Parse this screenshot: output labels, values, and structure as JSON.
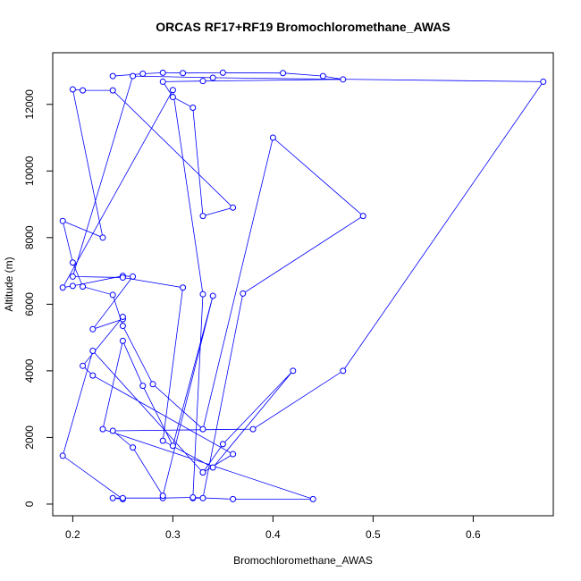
{
  "chart_data": {
    "type": "line",
    "title": "ORCAS RF17+RF19 Bromochloromethane_AWAS",
    "xlabel": "Bromochloromethane_AWAS",
    "ylabel": "Altitude (m)",
    "xlim": [
      0.18,
      0.68
    ],
    "ylim": [
      -350,
      13550
    ],
    "xticks": [
      0.2,
      0.3,
      0.4,
      0.5,
      0.6
    ],
    "xtick_labels": [
      "0.2",
      "0.3",
      "0.4",
      "0.5",
      "0.6"
    ],
    "yticks": [
      0,
      2000,
      4000,
      6000,
      8000,
      10000,
      12000
    ],
    "ytick_labels": [
      "0",
      "2000",
      "4000",
      "6000",
      "8000",
      "10000",
      "12000"
    ],
    "grid": false,
    "colors": {
      "series": "#0000ff",
      "axis": "#000000"
    },
    "series": [
      {
        "x": [
          0.24,
          0.27,
          0.29,
          0.31,
          0.35,
          0.41,
          0.45,
          0.47,
          0.33,
          0.29,
          0.3,
          0.32,
          0.33,
          0.36,
          0.24,
          0.21,
          0.2,
          0.23,
          0.19,
          0.2,
          0.21,
          0.24,
          0.25,
          0.28,
          0.33,
          0.4,
          0.49,
          0.37,
          0.33,
          0.32,
          0.33,
          0.3,
          0.19,
          0.2,
          0.25,
          0.26,
          0.22,
          0.25,
          0.25,
          0.21,
          0.22,
          0.36,
          0.33,
          0.22,
          0.19,
          0.25,
          0.24,
          0.25,
          0.29,
          0.32,
          0.36,
          0.44,
          0.23,
          0.25,
          0.27,
          0.3,
          0.34,
          0.29,
          0.26,
          0.24,
          0.38,
          0.47,
          0.67,
          0.34,
          0.26,
          0.2,
          0.25,
          0.31,
          0.29,
          0.34,
          0.42,
          0.35,
          0.33
        ],
        "y": [
          12850,
          12920,
          12950,
          12940,
          12950,
          12940,
          12850,
          12750,
          12700,
          12680,
          12220,
          11900,
          8650,
          8900,
          12420,
          12420,
          12450,
          8000,
          8500,
          7250,
          6530,
          6280,
          5350,
          3600,
          2250,
          11000,
          8650,
          6320,
          180,
          180,
          6300,
          12430,
          6500,
          6550,
          6850,
          6830,
          5250,
          5550,
          5620,
          4150,
          3860,
          1500,
          950,
          4600,
          1450,
          150,
          180,
          180,
          180,
          200,
          150,
          150,
          2250,
          4900,
          3550,
          1750,
          6250,
          250,
          1700,
          2200,
          2250,
          4000,
          12680,
          12800,
          12850,
          6830,
          6800,
          6500,
          1900,
          1100,
          4000,
          1800,
          950
        ]
      }
    ]
  }
}
